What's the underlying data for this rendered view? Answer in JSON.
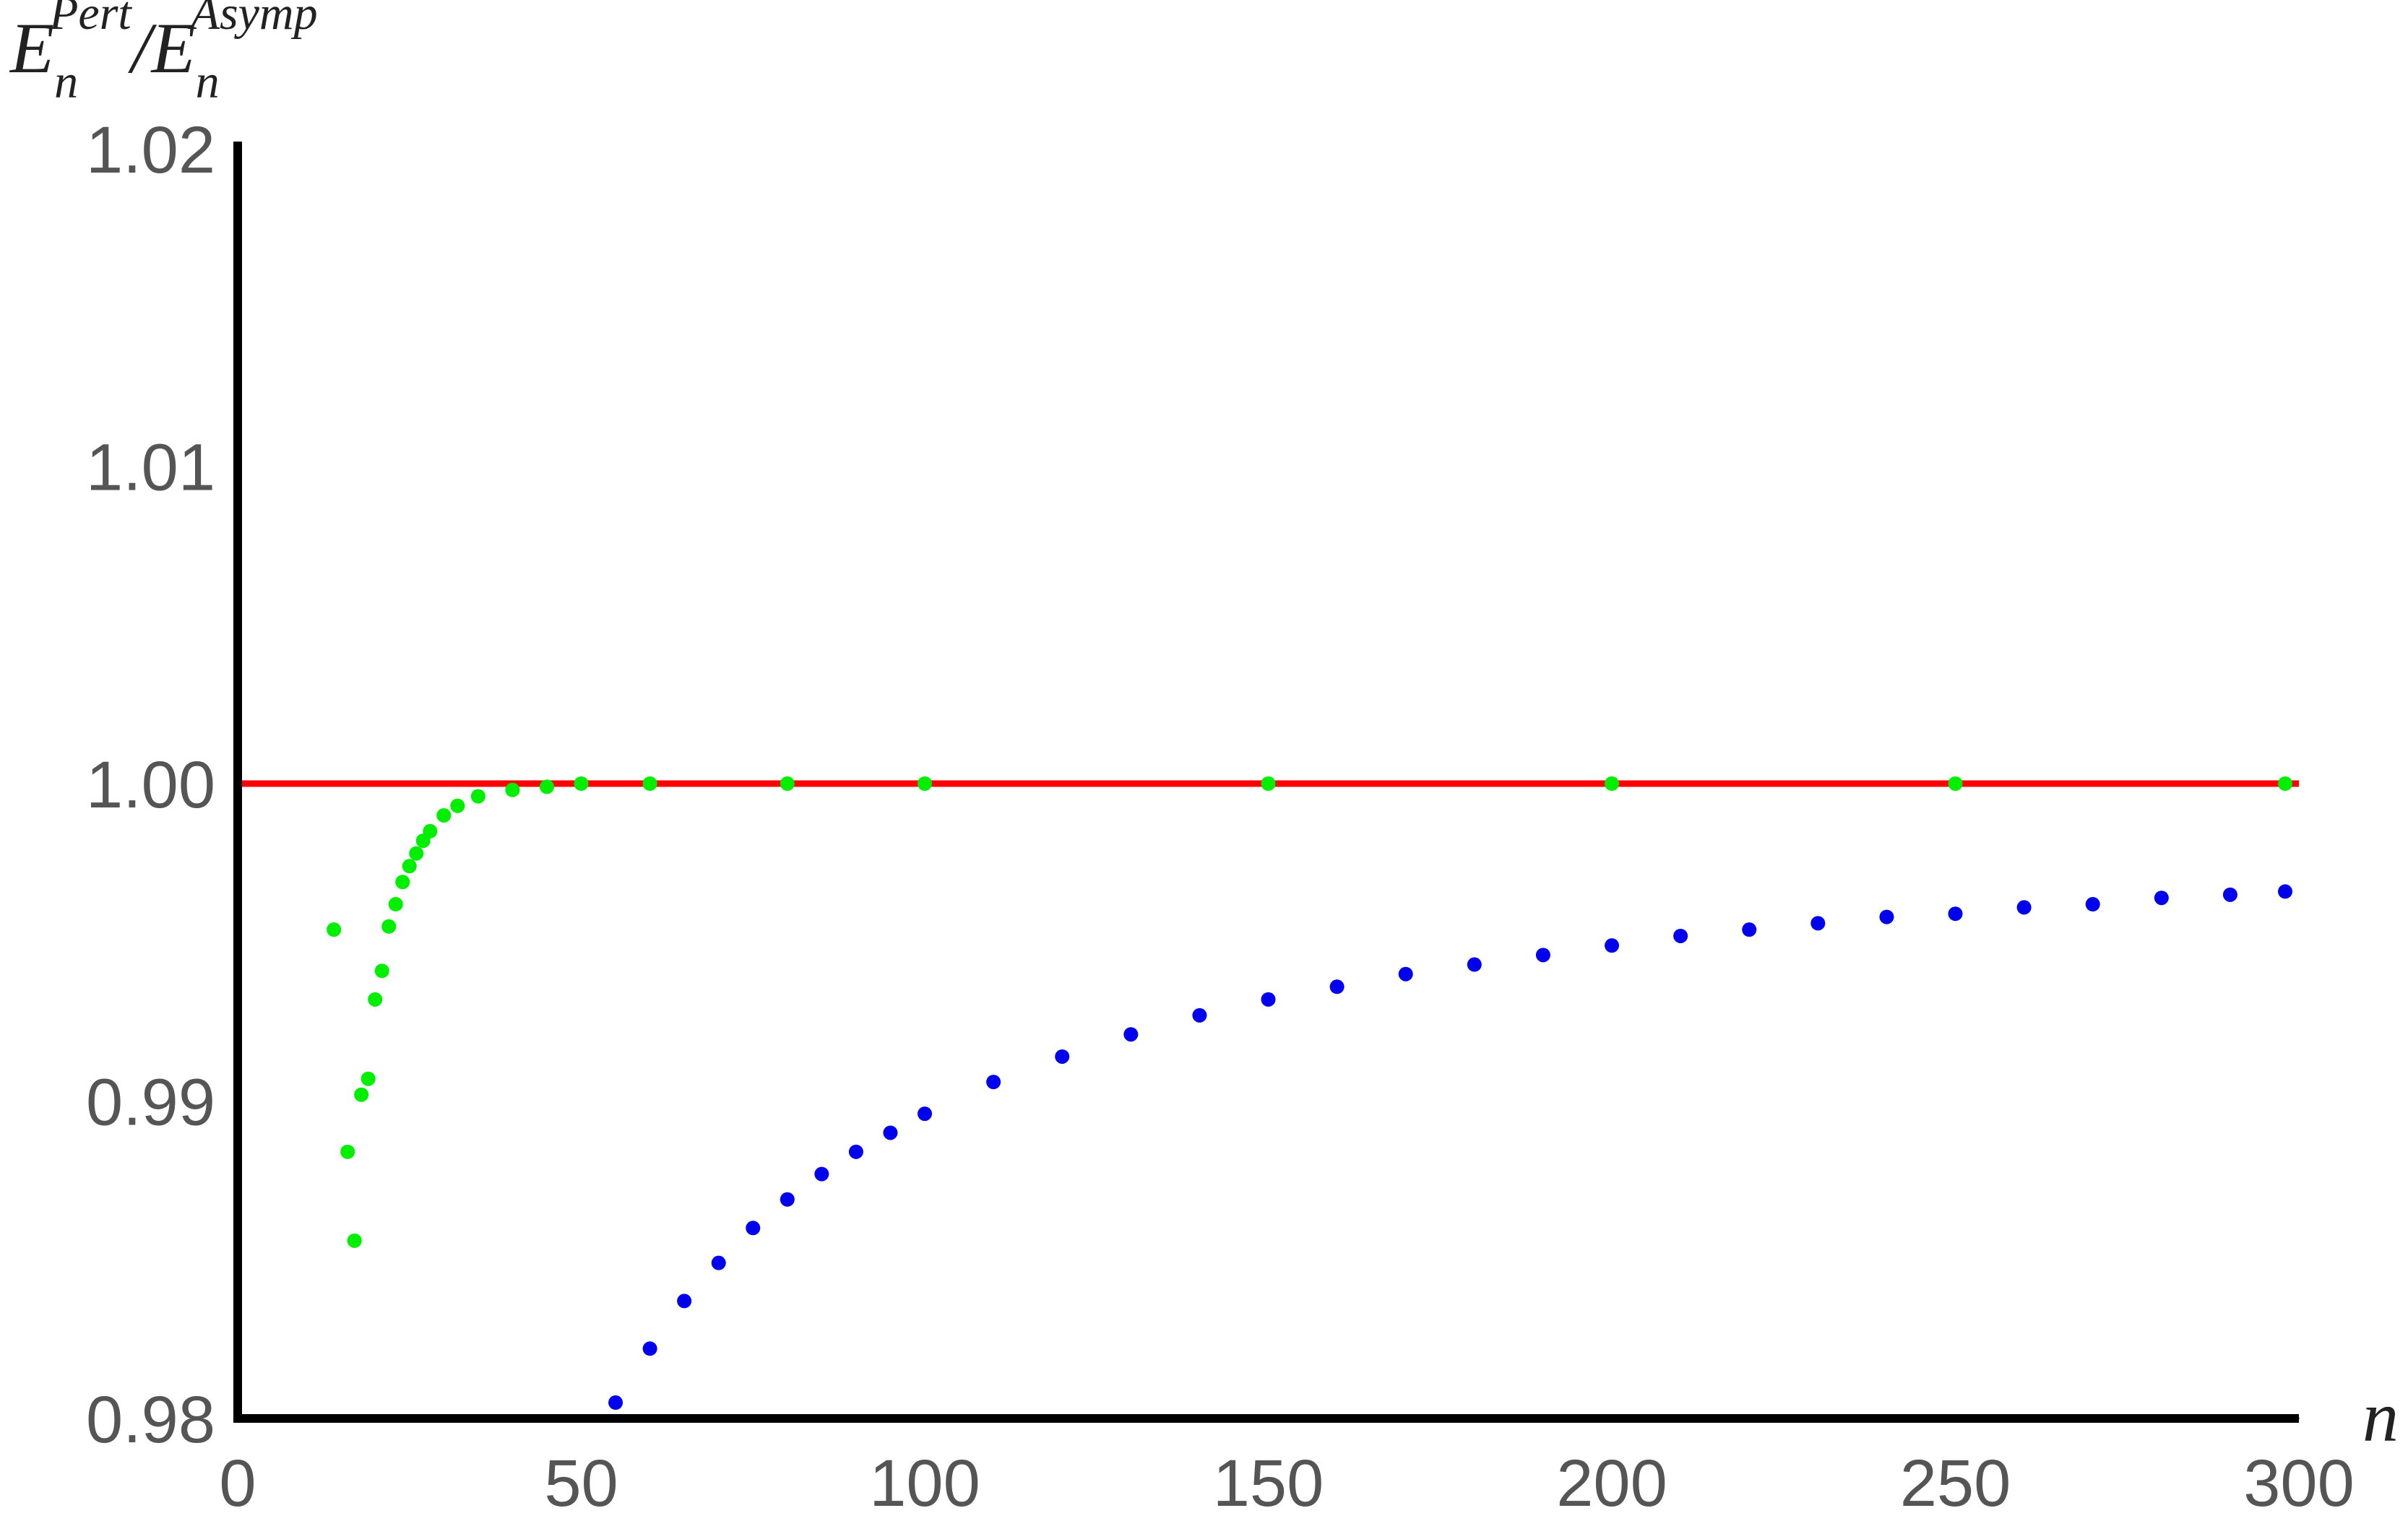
{
  "chart_data": {
    "type": "scatter",
    "ylabel": {
      "base1": "E",
      "sub1": "n",
      "sup1": "Pert",
      "slash": "/",
      "base2": "E",
      "sub2": "n",
      "sup2": "Asymp"
    },
    "xlabel": "n",
    "xlim": [
      0,
      300
    ],
    "xticks": [
      0,
      50,
      100,
      150,
      200,
      250,
      300
    ],
    "ylim": [
      0.98,
      1.02
    ],
    "yticks": [
      0.98,
      0.99,
      {
        "value": 1,
        "label": "1.00"
      },
      1.01,
      1.02
    ],
    "grid": false,
    "series": [
      {
        "mode": "line",
        "color": "#ff0000",
        "x": [
          0,
          300
        ],
        "values": [
          1,
          1
        ]
      },
      {
        "mode": "points",
        "color": "#0000ee",
        "x": [
          55,
          60,
          65,
          70,
          75,
          80,
          85,
          90,
          95,
          100,
          110,
          120,
          130,
          140,
          150,
          160,
          170,
          180,
          190,
          200,
          210,
          220,
          230,
          240,
          250,
          260,
          270,
          280,
          290,
          298
        ],
        "values": [
          0.9805,
          0.9822,
          0.9837,
          0.9849,
          0.986,
          0.9869,
          0.9877,
          0.9884,
          0.989,
          0.9896,
          0.9906,
          0.9914,
          0.9921,
          0.9927,
          0.9932,
          0.9936,
          0.994,
          0.9943,
          0.9946,
          0.9949,
          0.9952,
          0.9954,
          0.9956,
          0.9958,
          0.9959,
          0.9961,
          0.9962,
          0.9964,
          0.9965,
          0.9966
        ]
      },
      {
        "mode": "points",
        "color": "#00ee00",
        "x": [
          14,
          16,
          17,
          18,
          19,
          20,
          21,
          22,
          23,
          24,
          25,
          26,
          27,
          28,
          30,
          32,
          35,
          40,
          45,
          50,
          60,
          80,
          100,
          150,
          200,
          250,
          298
        ],
        "values": [
          0.9954,
          0.9884,
          0.9856,
          0.9902,
          0.9907,
          0.9932,
          0.9941,
          0.9955,
          0.9962,
          0.9969,
          0.9974,
          0.9978,
          0.9982,
          0.9985,
          0.999,
          0.9993,
          0.9996,
          0.9998,
          0.9999,
          1.0,
          1.0,
          1.0,
          1.0,
          1.0,
          1.0,
          1.0,
          1.0
        ]
      }
    ]
  }
}
